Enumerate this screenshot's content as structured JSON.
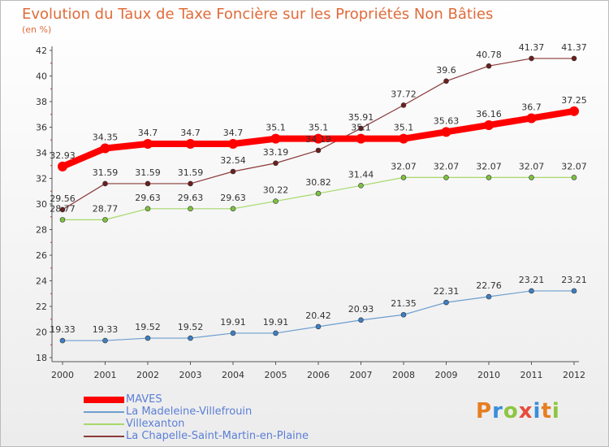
{
  "title": "Evolution du Taux de Taxe Foncière sur les Propriétés Non Bâties",
  "unit_label": "(en %)",
  "logo": {
    "letters": [
      "P",
      "r",
      "o",
      "x",
      "i",
      "t",
      "i"
    ],
    "colors": [
      "#e67e22",
      "#3b8ed8",
      "#8dc63f",
      "#e74c3c",
      "#3b8ed8",
      "#e67e22",
      "#8dc63f"
    ]
  },
  "chart_data": {
    "type": "line",
    "x": [
      "2000",
      "2001",
      "2002",
      "2003",
      "2004",
      "2005",
      "2006",
      "2007",
      "2008",
      "2009",
      "2010",
      "2011",
      "2012"
    ],
    "ylim": [
      18,
      42
    ],
    "yticks": [
      18,
      20,
      22,
      24,
      26,
      28,
      30,
      32,
      34,
      36,
      38,
      40,
      42
    ],
    "grid": false,
    "legend_position": "bottom-left",
    "series": [
      {
        "name": "MAVES",
        "color": "#ff0000",
        "marker": "#ff0000",
        "values": [
          32.93,
          34.35,
          34.7,
          34.7,
          34.7,
          35.1,
          35.1,
          35.1,
          35.1,
          35.63,
          36.16,
          36.7,
          37.25
        ],
        "labels": [
          "32.93",
          "34.35",
          "34.7",
          "34.7",
          "34.7",
          "35.1",
          "35.1",
          "35.1",
          "35.1",
          "35.63",
          "36.16",
          "36.7",
          "37.25"
        ]
      },
      {
        "name": "La Madeleine-Villefrouin",
        "color": "#6d9ecf",
        "marker": "#3d7fc4",
        "values": [
          19.33,
          19.33,
          19.52,
          19.52,
          19.91,
          19.91,
          20.42,
          20.93,
          21.35,
          22.31,
          22.76,
          23.21,
          23.21
        ],
        "labels": [
          "19.33",
          "19.33",
          "19.52",
          "19.52",
          "19.91",
          "19.91",
          "20.42",
          "20.93",
          "21.35",
          "22.31",
          "22.76",
          "23.21",
          "23.21"
        ]
      },
      {
        "name": "Villexanton",
        "color": "#a6d96a",
        "marker": "#7cc242",
        "values": [
          28.77,
          28.77,
          29.63,
          29.63,
          29.63,
          30.22,
          30.82,
          31.44,
          32.07,
          32.07,
          32.07,
          32.07,
          32.07
        ],
        "labels": [
          "28.77",
          "28.77",
          "29.63",
          "29.63",
          "29.63",
          "30.22",
          "30.82",
          "31.44",
          "32.07",
          "32.07",
          "32.07",
          "32.07",
          "32.07"
        ]
      },
      {
        "name": "La Chapelle-Saint-Martin-en-Plaine",
        "color": "#8b3a3a",
        "marker": "#6b1f1f",
        "values": [
          29.56,
          31.59,
          31.59,
          31.59,
          32.54,
          33.19,
          34.19,
          35.91,
          37.72,
          39.6,
          40.78,
          41.37,
          41.37
        ],
        "labels": [
          "29.56",
          "31.59",
          "31.59",
          "31.59",
          "32.54",
          "33.19",
          "34.19",
          "35.91",
          "37.72",
          "39.6",
          "40.78",
          "41.37",
          "41.37"
        ]
      }
    ]
  }
}
